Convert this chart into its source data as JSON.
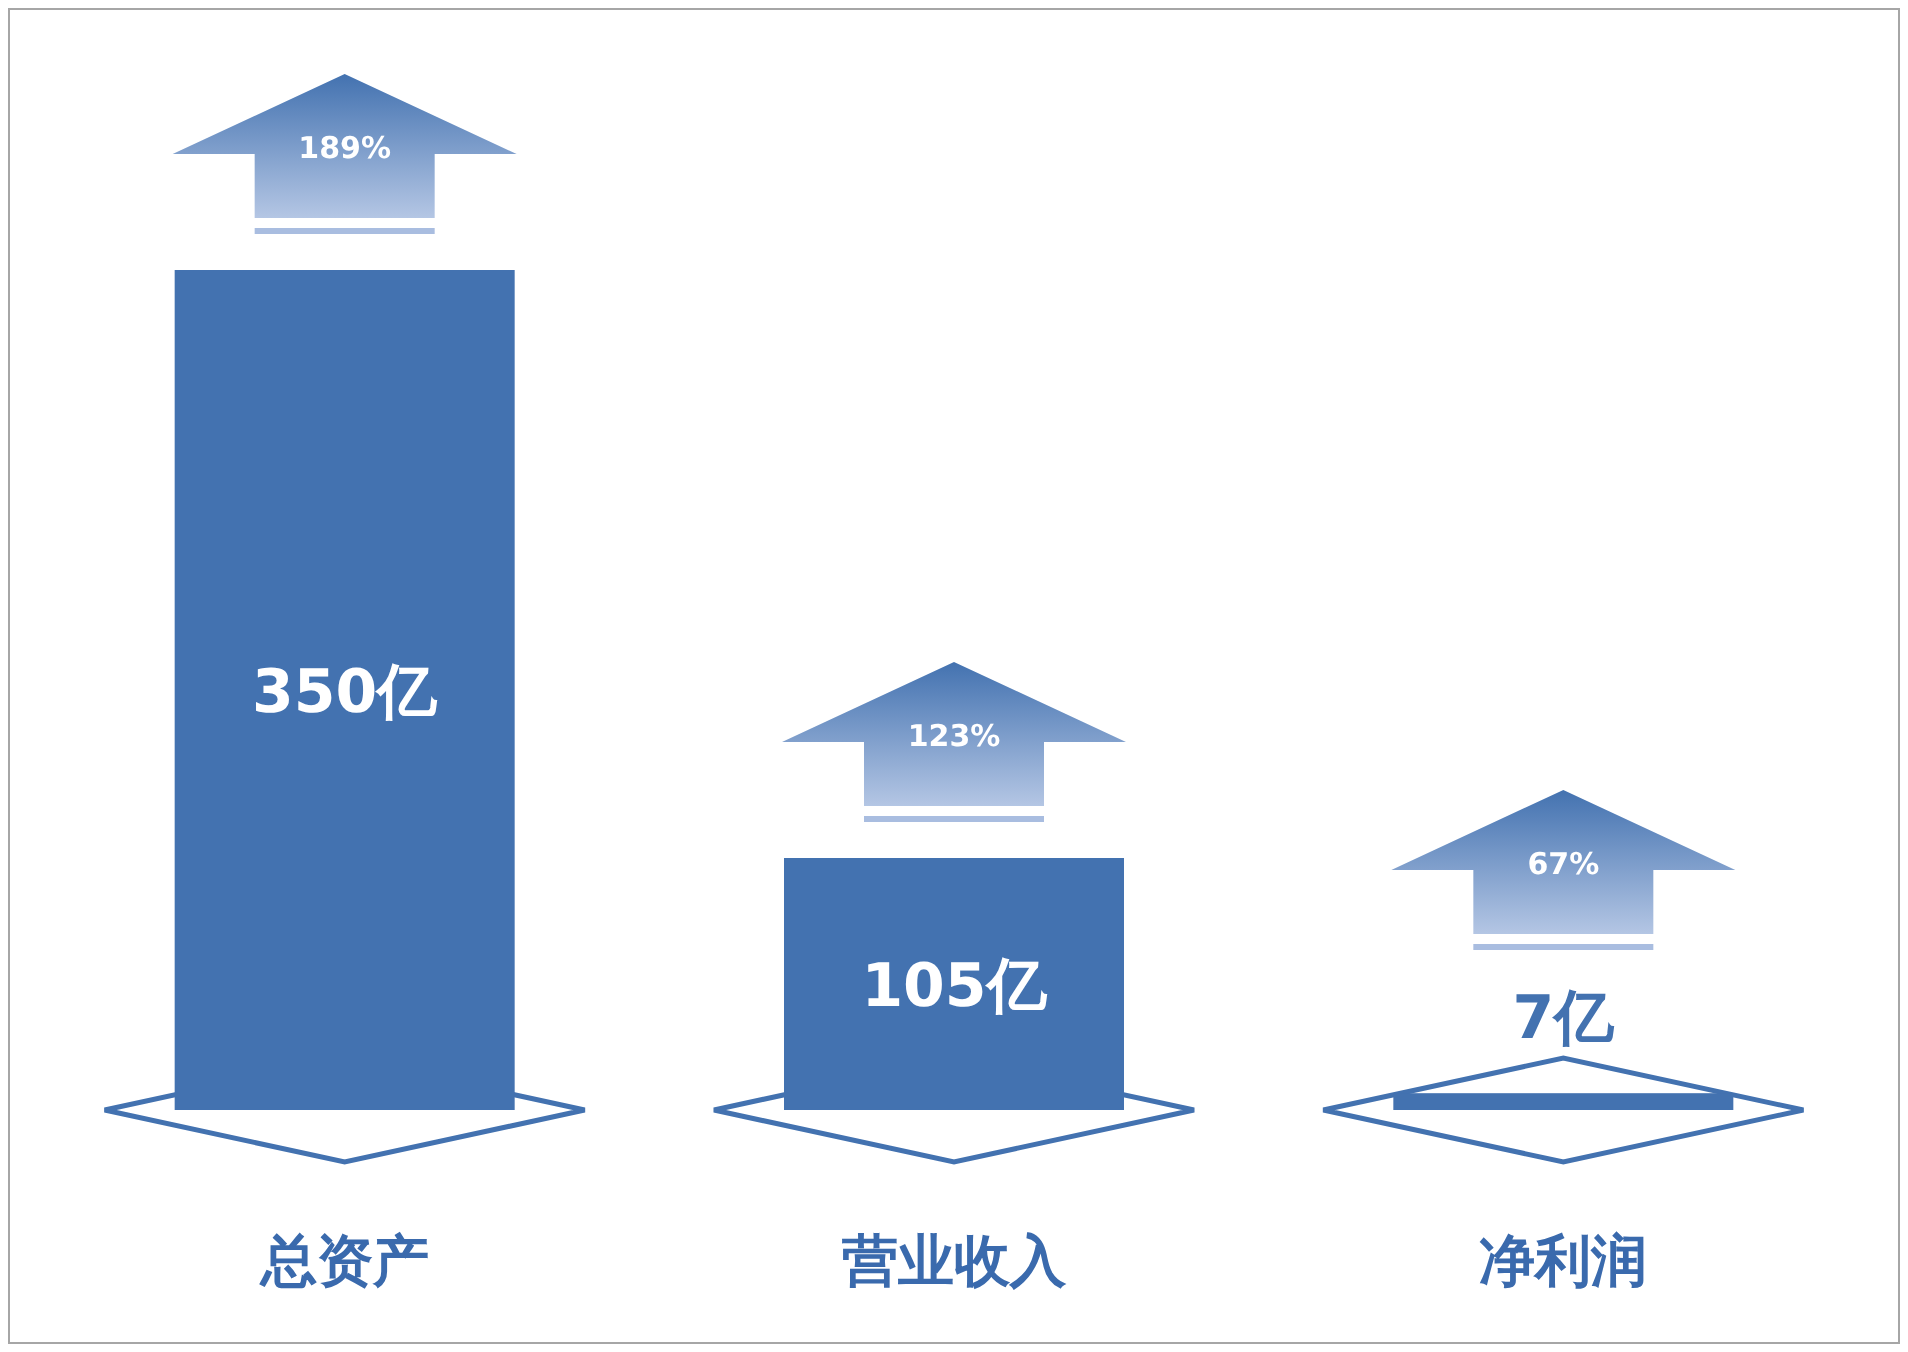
{
  "chart_data": {
    "type": "bar",
    "categories": [
      "总资产",
      "营业收入",
      "净利润"
    ],
    "values": [
      350,
      105,
      7
    ],
    "color": "#4372b0",
    "value_labels": [
      "350亿",
      "105亿",
      "7亿"
    ],
    "annotations": [
      "189%",
      "123%",
      "67%"
    ]
  }
}
